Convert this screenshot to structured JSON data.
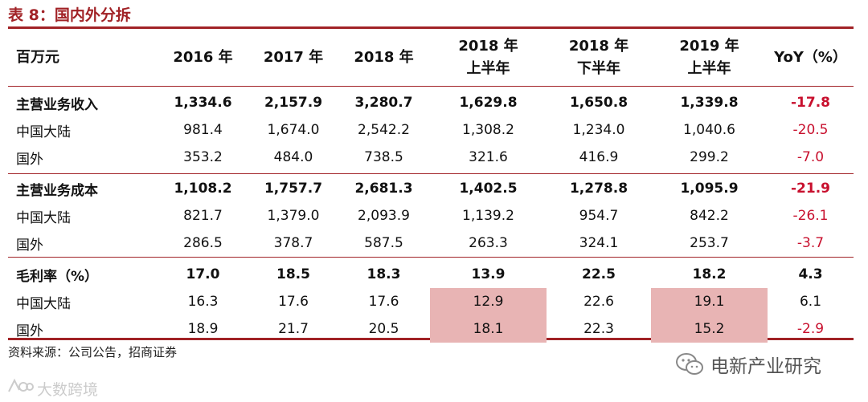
{
  "title": "表 8：国内外分拆",
  "header": {
    "unit": "百万元",
    "columns": [
      {
        "line1": "2016 年",
        "line2": ""
      },
      {
        "line1": "2017 年",
        "line2": ""
      },
      {
        "line1": "2018 年",
        "line2": ""
      },
      {
        "line1": "2018 年",
        "line2": "上半年"
      },
      {
        "line1": "2018 年",
        "line2": "下半年"
      },
      {
        "line1": "2019 年",
        "line2": "上半年"
      },
      {
        "line1": "YoY（%）",
        "line2": ""
      }
    ]
  },
  "sections": [
    {
      "main": {
        "label": "主营业务收入",
        "values": [
          "1,334.6",
          "2,157.9",
          "3,280.7",
          "1,629.8",
          "1,650.8",
          "1,339.8",
          "-17.8"
        ]
      },
      "rows": [
        {
          "label": "中国大陆",
          "values": [
            "981.4",
            "1,674.0",
            "2,542.2",
            "1,308.2",
            "1,234.0",
            "1,040.6",
            "-20.5"
          ]
        },
        {
          "label": "国外",
          "values": [
            "353.2",
            "484.0",
            "738.5",
            "321.6",
            "416.9",
            "299.2",
            "-7.0"
          ]
        }
      ]
    },
    {
      "main": {
        "label": "主营业务成本",
        "values": [
          "1,108.2",
          "1,757.7",
          "2,681.3",
          "1,402.5",
          "1,278.8",
          "1,095.9",
          "-21.9"
        ]
      },
      "rows": [
        {
          "label": "中国大陆",
          "values": [
            "821.7",
            "1,379.0",
            "2,093.9",
            "1,139.2",
            "954.7",
            "842.2",
            "-26.1"
          ]
        },
        {
          "label": "国外",
          "values": [
            "286.5",
            "378.7",
            "587.5",
            "263.3",
            "324.1",
            "253.7",
            "-3.7"
          ]
        }
      ]
    },
    {
      "main": {
        "label": "毛利率（%）",
        "values": [
          "17.0",
          "18.5",
          "18.3",
          "13.9",
          "22.5",
          "18.2",
          "4.3"
        ]
      },
      "rows": [
        {
          "label": "中国大陆",
          "values": [
            "16.3",
            "17.6",
            "17.6",
            "12.9",
            "22.6",
            "19.1",
            "6.1"
          ]
        },
        {
          "label": "国外",
          "values": [
            "18.9",
            "21.7",
            "20.5",
            "18.1",
            "22.3",
            "15.2",
            "-2.9"
          ]
        }
      ]
    }
  ],
  "footer": {
    "source": "资料来源：公司公告，招商证券"
  },
  "watermark": {
    "wechat_account": "电新产业研究",
    "site": "大数跨境"
  },
  "colors": {
    "accent": "#a12226",
    "negative": "#c8102e",
    "highlight": "#e8b4b4"
  }
}
